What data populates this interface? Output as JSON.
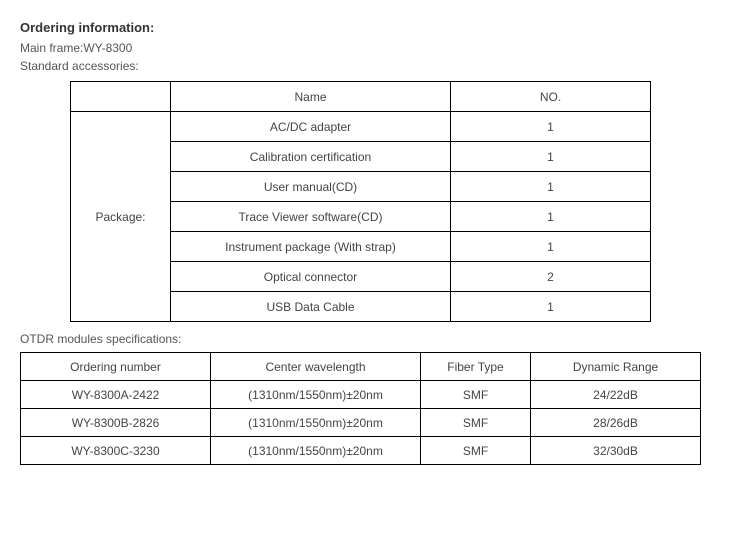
{
  "header": {
    "title": "Ordering information:",
    "main_frame_label": "Main frame:",
    "main_frame_value": "WY-8300",
    "accessories_label": "Standard accessories:"
  },
  "accessories_table": {
    "header_name": "Name",
    "header_no": "NO.",
    "package_label": "Package:",
    "rows": [
      {
        "name": "AC/DC adapter",
        "no": "1"
      },
      {
        "name": "Calibration certification",
        "no": "1"
      },
      {
        "name": "User manual(CD)",
        "no": "1"
      },
      {
        "name": "Trace Viewer software(CD)",
        "no": "1"
      },
      {
        "name": "Instrument package (With strap)",
        "no": "1"
      },
      {
        "name": "Optical connector",
        "no": "2"
      },
      {
        "name": "USB Data Cable",
        "no": "1"
      }
    ]
  },
  "modules_section_label": "OTDR modules specifications:",
  "modules_table": {
    "headers": {
      "ordering": "Ordering number",
      "wavelength": "Center wavelength",
      "fiber": "Fiber Type",
      "range": "Dynamic Range"
    },
    "rows": [
      {
        "ordering": "WY-8300A-2422",
        "wavelength": "(1310nm/1550nm)±20nm",
        "fiber": "SMF",
        "range": "24/22dB"
      },
      {
        "ordering": "WY-8300B-2826",
        "wavelength": "(1310nm/1550nm)±20nm",
        "fiber": "SMF",
        "range": "28/26dB"
      },
      {
        "ordering": "WY-8300C-3230",
        "wavelength": "(1310nm/1550nm)±20nm",
        "fiber": "SMF",
        "range": "32/30dB"
      }
    ]
  }
}
